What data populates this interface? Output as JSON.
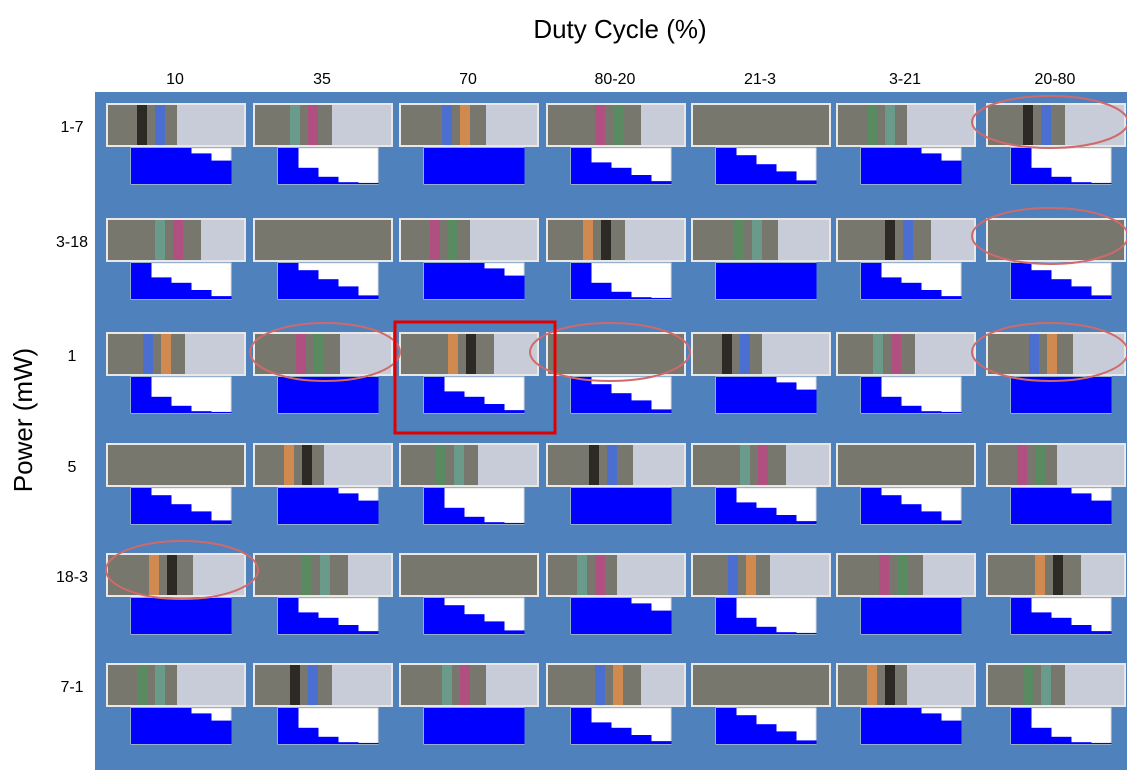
{
  "title": "Duty Cycle (%)",
  "y_label": "Power (mW)",
  "columns": [
    "10",
    "35",
    "70",
    "80-20",
    "21-3",
    "3-21",
    "20-80"
  ],
  "rows": [
    "1-7",
    "3-18",
    "1",
    "5",
    "18-3",
    "7-1"
  ]
}
